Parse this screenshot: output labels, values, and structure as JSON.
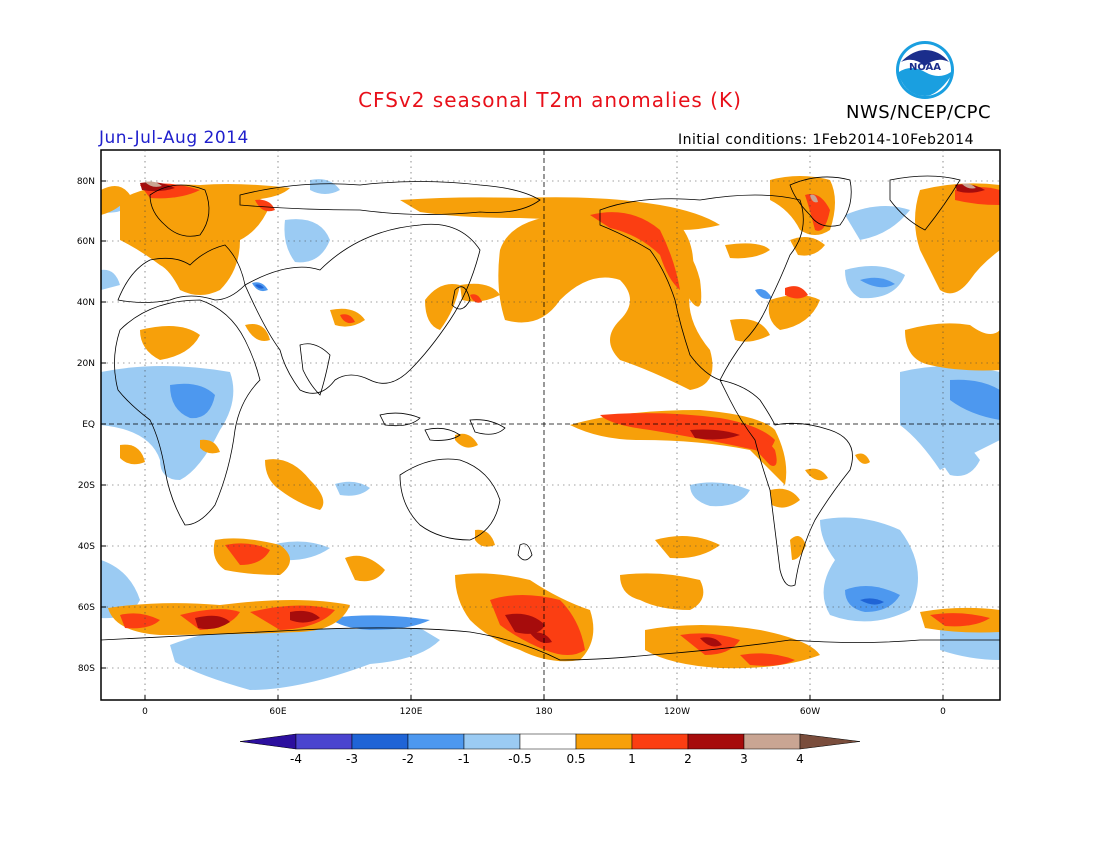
{
  "header": {
    "title": "CFSv2 seasonal T2m anomalies (K)",
    "organization": "NWS/NCEP/CPC",
    "logo_text": "NOAA",
    "period": "Jun-Jul-Aug 2014",
    "initial_conditions": "Initial conditions: 1Feb2014-10Feb2014"
  },
  "map": {
    "projection": "cylindrical equidistant",
    "lon_labels": [
      "0",
      "60E",
      "120E",
      "180",
      "120W",
      "60W",
      "0"
    ],
    "lat_labels": [
      "80N",
      "60N",
      "40N",
      "20N",
      "EQ",
      "20S",
      "40S",
      "60S",
      "80S"
    ]
  },
  "colorbar": {
    "labels": [
      "-4",
      "-3",
      "-2",
      "-1",
      "-0.5",
      "0.5",
      "1",
      "2",
      "3",
      "4"
    ],
    "colors": [
      "#2c0f9e",
      "#4a44cf",
      "#1f64d6",
      "#4d98ef",
      "#9bcbf3",
      "#ffffff",
      "#f7a00a",
      "#fb3e12",
      "#a60c0c",
      "#c9a593",
      "#7a4d3c"
    ]
  },
  "icons": [
    "noaa-logo"
  ]
}
